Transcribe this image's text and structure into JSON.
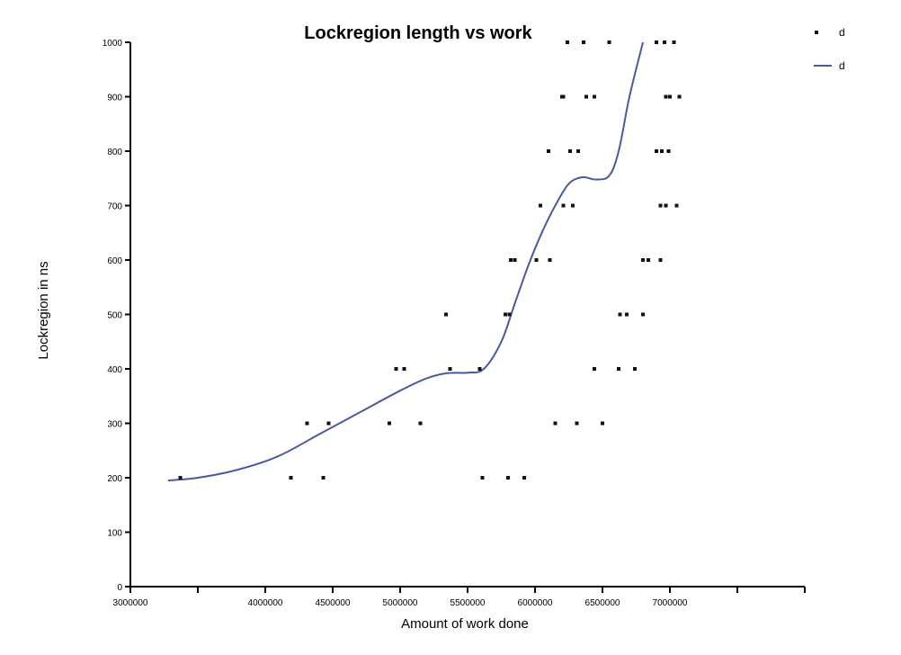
{
  "chart_data": {
    "type": "scatter",
    "title": "Lockregion length vs work",
    "xlabel": "Amount of work done",
    "ylabel": "Lockregion in ns",
    "xlim": [
      3000000,
      8000000
    ],
    "ylim": [
      0,
      1000
    ],
    "x_ticks": [
      {
        "value": 3000000,
        "label": "3000000"
      },
      {
        "value": 3500000,
        "label": ""
      },
      {
        "value": 4000000,
        "label": "4000000"
      },
      {
        "value": 4500000,
        "label": "4500000"
      },
      {
        "value": 5000000,
        "label": "5000000"
      },
      {
        "value": 5500000,
        "label": "5500000"
      },
      {
        "value": 6000000,
        "label": "6000000"
      },
      {
        "value": 6500000,
        "label": "6500000"
      },
      {
        "value": 7000000,
        "label": "7000000"
      },
      {
        "value": 7500000,
        "label": ""
      }
    ],
    "y_ticks": [
      {
        "value": 0,
        "label": "0"
      },
      {
        "value": 100,
        "label": "100"
      },
      {
        "value": 200,
        "label": "200"
      },
      {
        "value": 300,
        "label": "300"
      },
      {
        "value": 400,
        "label": "400"
      },
      {
        "value": 500,
        "label": "500"
      },
      {
        "value": 600,
        "label": "600"
      },
      {
        "value": 700,
        "label": "700"
      },
      {
        "value": 800,
        "label": "800"
      },
      {
        "value": 900,
        "label": "900"
      },
      {
        "value": 1000,
        "label": "1000"
      }
    ],
    "grid": false,
    "legend": {
      "placement": "top-right",
      "entries": [
        {
          "label": "d",
          "type": "marker"
        },
        {
          "label": "d",
          "type": "line"
        }
      ]
    },
    "series": [
      {
        "kind": "points",
        "color": "#111111",
        "points": [
          [
            3370000,
            200
          ],
          [
            4190000,
            200
          ],
          [
            4430000,
            200
          ],
          [
            5610000,
            200
          ],
          [
            5800000,
            200
          ],
          [
            5920000,
            200
          ],
          [
            4310000,
            300
          ],
          [
            4470000,
            300
          ],
          [
            4920000,
            300
          ],
          [
            5150000,
            300
          ],
          [
            6150000,
            300
          ],
          [
            6310000,
            300
          ],
          [
            6500000,
            300
          ],
          [
            4970000,
            400
          ],
          [
            5030000,
            400
          ],
          [
            5370000,
            400
          ],
          [
            5590000,
            400
          ],
          [
            6440000,
            400
          ],
          [
            6620000,
            400
          ],
          [
            6740000,
            400
          ],
          [
            5340000,
            500
          ],
          [
            5780000,
            500
          ],
          [
            5810000,
            500
          ],
          [
            6630000,
            500
          ],
          [
            6680000,
            500
          ],
          [
            6800000,
            500
          ],
          [
            5820000,
            600
          ],
          [
            5850000,
            600
          ],
          [
            6010000,
            600
          ],
          [
            6110000,
            600
          ],
          [
            6800000,
            600
          ],
          [
            6840000,
            600
          ],
          [
            6930000,
            600
          ],
          [
            6040000,
            700
          ],
          [
            6210000,
            700
          ],
          [
            6280000,
            700
          ],
          [
            6930000,
            700
          ],
          [
            6970000,
            700
          ],
          [
            7050000,
            700
          ],
          [
            6100000,
            800
          ],
          [
            6260000,
            800
          ],
          [
            6320000,
            800
          ],
          [
            6900000,
            800
          ],
          [
            6940000,
            800
          ],
          [
            6990000,
            800
          ],
          [
            6200000,
            900
          ],
          [
            6210000,
            900
          ],
          [
            6380000,
            900
          ],
          [
            6440000,
            900
          ],
          [
            6970000,
            900
          ],
          [
            7000000,
            900
          ],
          [
            7070000,
            900
          ],
          [
            6240000,
            1000
          ],
          [
            6360000,
            1000
          ],
          [
            6550000,
            1000
          ],
          [
            6900000,
            1000
          ],
          [
            6960000,
            1000
          ],
          [
            7030000,
            1000
          ]
        ]
      },
      {
        "kind": "line",
        "color": "#4a5a9e",
        "points": [
          [
            3280000,
            195
          ],
          [
            3500000,
            200
          ],
          [
            3800000,
            215
          ],
          [
            4100000,
            240
          ],
          [
            4400000,
            280
          ],
          [
            4700000,
            320
          ],
          [
            5000000,
            360
          ],
          [
            5200000,
            383
          ],
          [
            5350000,
            392
          ],
          [
            5500000,
            393
          ],
          [
            5620000,
            400
          ],
          [
            5750000,
            450
          ],
          [
            5850000,
            520
          ],
          [
            5950000,
            590
          ],
          [
            6050000,
            650
          ],
          [
            6150000,
            700
          ],
          [
            6250000,
            740
          ],
          [
            6350000,
            752
          ],
          [
            6450000,
            748
          ],
          [
            6550000,
            755
          ],
          [
            6620000,
            800
          ],
          [
            6700000,
            900
          ],
          [
            6800000,
            1000
          ]
        ]
      }
    ]
  }
}
